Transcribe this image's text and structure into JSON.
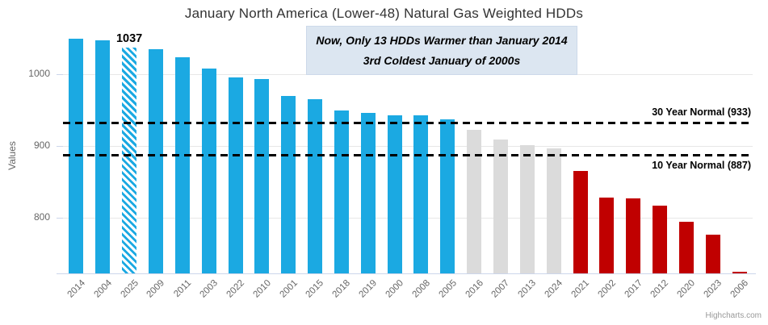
{
  "chart_data": {
    "type": "bar",
    "title": "January North America (Lower-48) Natural Gas Weighted HDDs",
    "ylabel": "Values",
    "yticks": [
      800,
      900,
      1000
    ],
    "ylim": [
      722,
      1070
    ],
    "grid": "horizontal",
    "legend_position": "none",
    "categories": [
      "2014",
      "2004",
      "2025",
      "2009",
      "2011",
      "2003",
      "2022",
      "2010",
      "2001",
      "2015",
      "2018",
      "2019",
      "2000",
      "2008",
      "2005",
      "2016",
      "2007",
      "2013",
      "2024",
      "2021",
      "2002",
      "2017",
      "2012",
      "2020",
      "2023",
      "2006"
    ],
    "values": [
      1050,
      1048,
      1037,
      1035,
      1024,
      1008,
      996,
      993,
      970,
      965,
      950,
      946,
      943,
      943,
      937,
      923,
      909,
      901,
      897,
      865,
      828,
      827,
      817,
      794,
      776,
      724
    ],
    "styles": [
      "blue",
      "blue",
      "hatched",
      "blue",
      "blue",
      "blue",
      "blue",
      "blue",
      "blue",
      "blue",
      "blue",
      "blue",
      "blue",
      "blue",
      "blue",
      "gray",
      "gray",
      "gray",
      "gray",
      "red",
      "red",
      "red",
      "red",
      "red",
      "red",
      "red"
    ],
    "colors": {
      "blue": "#1ba9e2",
      "gray": "#dbdbdb",
      "red": "#c00000"
    },
    "bar_label": {
      "category": "2025",
      "text": "1037"
    },
    "reference_lines": [
      {
        "name": "30-year-normal",
        "value": 933,
        "label": "30 Year Normal (933)",
        "label_position": "above"
      },
      {
        "name": "10-year-normal",
        "value": 887,
        "label": "10 Year Normal (887)",
        "label_position": "below"
      }
    ]
  },
  "annotation": {
    "line1": "Now, Only 13 HDDs Warmer than January 2014",
    "line2": "3rd Coldest January of 2000s",
    "bg_color": "#dce6f1"
  },
  "credits": "Highcharts.com"
}
